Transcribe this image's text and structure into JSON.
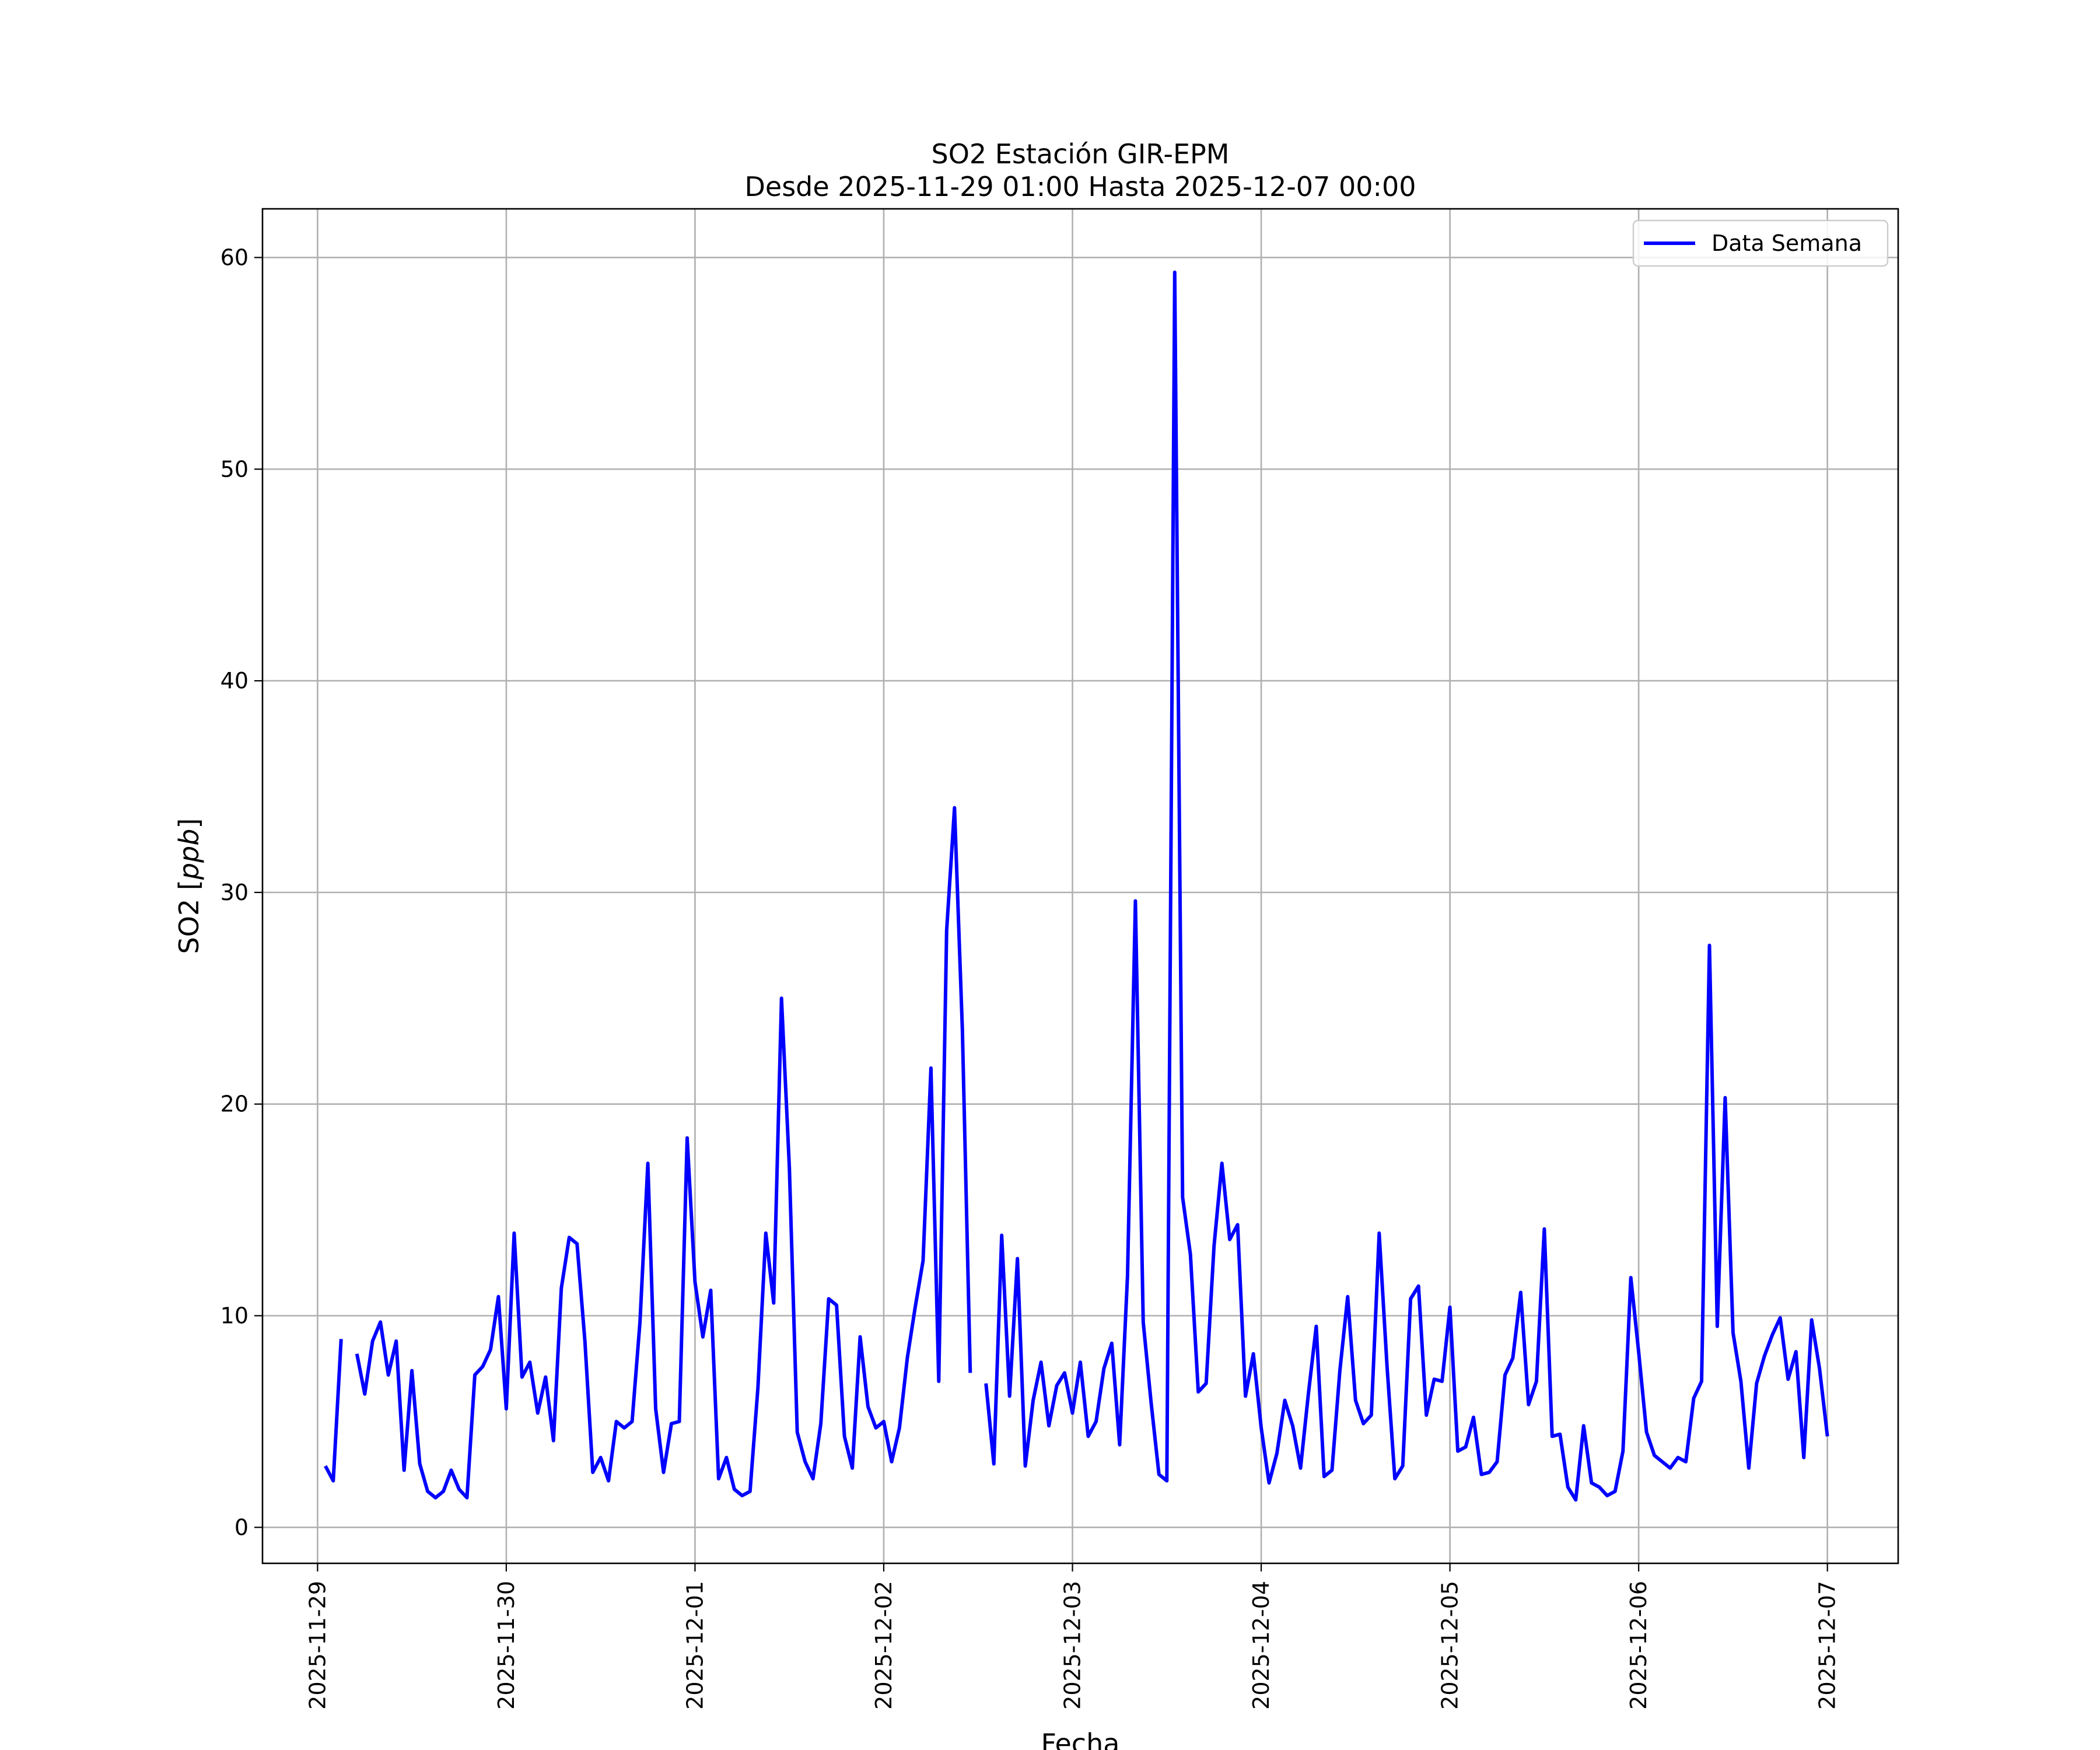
{
  "chart_data": {
    "type": "line",
    "title": "SO2 Estación GIR-EPM",
    "subtitle": "Desde 2025-11-29 01:00 Hasta 2025-12-07 00:00",
    "xlabel": "Fecha",
    "ylabel_prefix": "SO2 [",
    "ylabel_unit": "ppb",
    "ylabel_suffix": "]",
    "xlim": [
      "2025-11-28T17:00",
      "2025-12-07T09:00"
    ],
    "ylim": [
      -1.7,
      62.3
    ],
    "x_ticks": [
      "2025-11-29",
      "2025-11-30",
      "2025-12-01",
      "2025-12-02",
      "2025-12-03",
      "2025-12-04",
      "2025-12-05",
      "2025-12-06",
      "2025-12-07"
    ],
    "y_ticks": [
      0,
      10,
      20,
      30,
      40,
      50,
      60
    ],
    "grid": true,
    "legend_position": "upper right",
    "series": [
      {
        "name": "Data Semana",
        "color": "#0000ff",
        "x_start": "2025-11-29T01:00",
        "x_step_hours": 1,
        "values": [
          2.9,
          2.2,
          8.9,
          null,
          8.2,
          6.3,
          8.8,
          9.7,
          7.2,
          8.8,
          2.7,
          7.4,
          3.0,
          1.7,
          1.4,
          1.7,
          2.7,
          1.8,
          1.4,
          7.2,
          7.6,
          8.4,
          10.9,
          5.6,
          13.9,
          7.1,
          7.8,
          5.4,
          7.1,
          4.1,
          11.3,
          13.7,
          13.4,
          8.8,
          2.6,
          3.3,
          2.2,
          5.0,
          4.7,
          5.0,
          9.7,
          17.2,
          5.6,
          2.6,
          4.9,
          5.0,
          18.4,
          11.6,
          9.0,
          11.2,
          2.3,
          3.3,
          1.8,
          1.5,
          1.7,
          6.6,
          13.9,
          10.6,
          25.0,
          17.0,
          4.5,
          3.1,
          2.3,
          4.9,
          10.8,
          10.5,
          4.3,
          2.8,
          9.0,
          5.7,
          4.7,
          5.0,
          3.1,
          4.7,
          8.0,
          10.4,
          12.6,
          21.7,
          6.9,
          28.2,
          34.0,
          23.5,
          7.3,
          null,
          6.8,
          3.0,
          13.8,
          6.2,
          12.7,
          2.9,
          6.0,
          7.8,
          4.8,
          6.7,
          7.3,
          5.4,
          7.8,
          4.3,
          5.0,
          7.5,
          8.7,
          3.9,
          11.9,
          29.6,
          9.7,
          5.9,
          2.5,
          2.2,
          59.3,
          15.6,
          12.9,
          6.4,
          6.8,
          13.3,
          17.2,
          13.6,
          14.3,
          6.2,
          8.2,
          4.7,
          2.1,
          3.5,
          6.0,
          4.8,
          2.8,
          6.3,
          9.5,
          2.4,
          2.7,
          7.4,
          10.9,
          6.0,
          4.9,
          5.3,
          13.9,
          7.6,
          2.3,
          2.9,
          10.8,
          11.4,
          5.3,
          7.0,
          6.9,
          10.4,
          3.6,
          3.8,
          5.2,
          2.5,
          2.6,
          3.1,
          7.2,
          8.0,
          11.1,
          5.8,
          6.9,
          14.1,
          4.3,
          4.4,
          1.9,
          1.3,
          4.8,
          2.1,
          1.9,
          1.5,
          1.7,
          3.6,
          11.8,
          8.3,
          4.5,
          3.4,
          3.1,
          2.8,
          3.3,
          3.1,
          6.1,
          6.9,
          27.5,
          9.5,
          20.3,
          9.2,
          6.9,
          2.8,
          6.8,
          8.1,
          9.1,
          9.9,
          7.0,
          8.3,
          3.3,
          9.8,
          7.5,
          4.3
        ]
      }
    ]
  }
}
